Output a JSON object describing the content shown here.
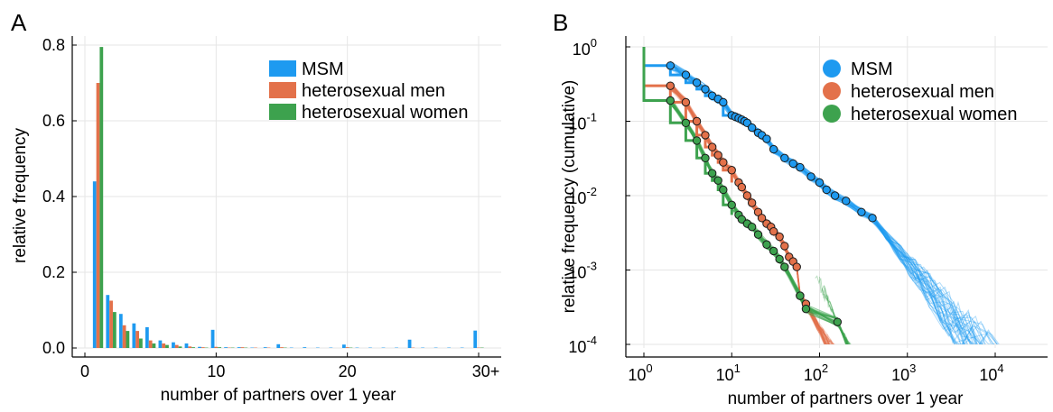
{
  "colors": {
    "msm": "#1e9af0",
    "het_men": "#e3714a",
    "het_women": "#3da24e",
    "grid": "#e6e6e6",
    "axis": "#000000"
  },
  "chart_data": [
    {
      "panel": "A",
      "type": "bar",
      "xlabel": "number of partners over 1 year",
      "ylabel": "relative frequency",
      "xlim": [
        0,
        31
      ],
      "ylim": [
        0,
        0.8
      ],
      "x_ticks": [
        0,
        10,
        20,
        30
      ],
      "x_tick_labels": [
        "0",
        "10",
        "20",
        "30+"
      ],
      "y_ticks": [
        0.0,
        0.2,
        0.4,
        0.6,
        0.8
      ],
      "y_tick_labels": [
        "0.0",
        "0.2",
        "0.4",
        "0.6",
        "0.8"
      ],
      "grid": true,
      "legend_position": "top-right",
      "x": [
        1,
        2,
        3,
        4,
        5,
        6,
        7,
        8,
        9,
        10,
        11,
        12,
        13,
        14,
        15,
        16,
        17,
        18,
        19,
        20,
        21,
        22,
        23,
        24,
        25,
        26,
        27,
        28,
        29,
        30
      ],
      "series": [
        {
          "name": "MSM",
          "color_key": "msm",
          "values": [
            0.44,
            0.14,
            0.09,
            0.065,
            0.055,
            0.02,
            0.015,
            0.012,
            0.003,
            0.048,
            0.002,
            0.002,
            0.001,
            0.002,
            0.01,
            0.001,
            0.002,
            0.001,
            0.001,
            0.009,
            0.001,
            0.001,
            0.001,
            0.001,
            0.022,
            0.001,
            0.001,
            0.001,
            0.001,
            0.046
          ]
        },
        {
          "name": "heterosexual men",
          "color_key": "het_men",
          "values": [
            0.7,
            0.125,
            0.06,
            0.045,
            0.02,
            0.012,
            0.008,
            0.004,
            0.002,
            0.003,
            0.001,
            0.002,
            0.001,
            0.001,
            0.002,
            0,
            0,
            0,
            0,
            0.002,
            0,
            0,
            0,
            0,
            0.001,
            0,
            0,
            0,
            0,
            0.001
          ]
        },
        {
          "name": "heterosexual women",
          "color_key": "het_women",
          "values": [
            0.795,
            0.095,
            0.045,
            0.025,
            0.012,
            0.008,
            0.004,
            0.002,
            0.001,
            0.002,
            0.001,
            0.001,
            0,
            0,
            0.001,
            0,
            0,
            0,
            0,
            0.001,
            0,
            0,
            0,
            0,
            0,
            0,
            0,
            0,
            0,
            0.001
          ]
        }
      ]
    },
    {
      "panel": "B",
      "type": "scatter",
      "xlabel": "number of partners over 1 year",
      "ylabel": "relative frequency (cumulative)",
      "x_scale": "log",
      "y_scale": "log",
      "xlim": [
        0.8,
        50000
      ],
      "ylim": [
        0.0001,
        1
      ],
      "x_ticks": [
        1,
        10,
        100,
        1000,
        10000
      ],
      "x_tick_labels": [
        {
          "base": "10",
          "exp": "0"
        },
        {
          "base": "10",
          "exp": "1"
        },
        {
          "base": "10",
          "exp": "2"
        },
        {
          "base": "10",
          "exp": "3"
        },
        {
          "base": "10",
          "exp": "4"
        }
      ],
      "y_ticks": [
        0.0001,
        0.001,
        0.01,
        0.1,
        1
      ],
      "y_tick_labels": [
        {
          "base": "10",
          "exp": "-4"
        },
        {
          "base": "10",
          "exp": "-3"
        },
        {
          "base": "10",
          "exp": "-2"
        },
        {
          "base": "10",
          "exp": "-1"
        },
        {
          "base": "10",
          "exp": "0"
        }
      ],
      "grid": true,
      "legend_position": "top-right",
      "series": [
        {
          "name": "MSM",
          "color_key": "msm",
          "points": [
            [
              2,
              0.56
            ],
            [
              3,
              0.42
            ],
            [
              4,
              0.33
            ],
            [
              5,
              0.27
            ],
            [
              6,
              0.22
            ],
            [
              7,
              0.2
            ],
            [
              8,
              0.18
            ],
            [
              10,
              0.12
            ],
            [
              11,
              0.115
            ],
            [
              12,
              0.11
            ],
            [
              13,
              0.105
            ],
            [
              14,
              0.1
            ],
            [
              15,
              0.095
            ],
            [
              17,
              0.082
            ],
            [
              20,
              0.07
            ],
            [
              22,
              0.065
            ],
            [
              25,
              0.058
            ],
            [
              30,
              0.042
            ],
            [
              40,
              0.032
            ],
            [
              50,
              0.027
            ],
            [
              60,
              0.024
            ],
            [
              80,
              0.018
            ],
            [
              100,
              0.015
            ],
            [
              120,
              0.012
            ],
            [
              150,
              0.01
            ],
            [
              200,
              0.0085
            ],
            [
              300,
              0.006
            ],
            [
              400,
              0.005
            ]
          ],
          "tail_to": [
            3000,
            40000
          ],
          "tail_slope": -1.5
        },
        {
          "name": "heterosexual men",
          "color_key": "het_men",
          "points": [
            [
              2,
              0.3
            ],
            [
              3,
              0.18
            ],
            [
              4,
              0.1
            ],
            [
              5,
              0.065
            ],
            [
              6,
              0.045
            ],
            [
              7,
              0.035
            ],
            [
              8,
              0.028
            ],
            [
              10,
              0.022
            ],
            [
              12,
              0.015
            ],
            [
              13,
              0.013
            ],
            [
              15,
              0.01
            ],
            [
              17,
              0.008
            ],
            [
              20,
              0.006
            ],
            [
              22,
              0.005
            ],
            [
              25,
              0.0042
            ],
            [
              28,
              0.0038
            ],
            [
              30,
              0.0033
            ],
            [
              35,
              0.0028
            ],
            [
              40,
              0.0021
            ],
            [
              45,
              0.0015
            ],
            [
              50,
              0.0013
            ],
            [
              55,
              0.0011
            ],
            [
              60,
              0.00045
            ],
            [
              70,
              0.00035
            ]
          ],
          "tail_to": [
            150,
            2500
          ],
          "tail_slope": -2.2
        },
        {
          "name": "heterosexual women",
          "color_key": "het_women",
          "points": [
            [
              2,
              0.19
            ],
            [
              3,
              0.095
            ],
            [
              4,
              0.055
            ],
            [
              5,
              0.032
            ],
            [
              6,
              0.02
            ],
            [
              7,
              0.016
            ],
            [
              8,
              0.012
            ],
            [
              10,
              0.0075
            ],
            [
              12,
              0.0055
            ],
            [
              13,
              0.0048
            ],
            [
              15,
              0.0042
            ],
            [
              17,
              0.0038
            ],
            [
              20,
              0.003
            ],
            [
              25,
              0.0022
            ],
            [
              30,
              0.0018
            ],
            [
              35,
              0.0014
            ],
            [
              40,
              0.0011
            ],
            [
              60,
              0.00045
            ],
            [
              70,
              0.0003
            ],
            [
              160,
              0.0002
            ]
          ],
          "tail_to": [
            80,
            600
          ],
          "tail_slope": -2.6
        }
      ]
    }
  ]
}
